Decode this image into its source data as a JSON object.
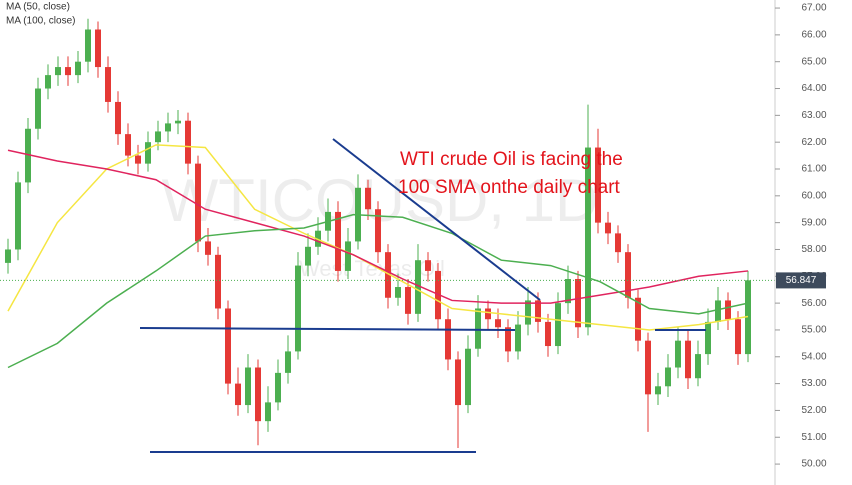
{
  "chart_data": {
    "type": "candlestick",
    "legend": [
      "MA (50, close)",
      "MA (100, close)"
    ],
    "annotation": [
      "WTI crude Oil is facing the",
      "100 SMA onthe daily chart"
    ],
    "watermark": [
      "WTICOUSD, 1D",
      "West Texas Oil"
    ],
    "up_color": "#4caf50",
    "down_color": "#e53935",
    "open": [
      57.5,
      58.0,
      60.5,
      62.5,
      64.0,
      64.5,
      64.8,
      64.5,
      65.0,
      66.2,
      64.8,
      63.5,
      62.3,
      61.5,
      61.2,
      62.0,
      62.4,
      62.7,
      62.8,
      61.2,
      58.3,
      57.8,
      55.8,
      53.0,
      52.2,
      53.6,
      51.6,
      52.3,
      53.4,
      54.2,
      57.4,
      58.1,
      58.7,
      59.4,
      57.2,
      58.3,
      60.3,
      59.5,
      57.9,
      56.2,
      56.6,
      55.6,
      57.6,
      57.2,
      55.4,
      53.9,
      52.2,
      54.3,
      55.8,
      55.4,
      55.1,
      54.2,
      55.2,
      56.1,
      55.3,
      54.4,
      56.0,
      56.9,
      55.1,
      61.8,
      59.0,
      58.6,
      57.9,
      56.2,
      54.6,
      52.6,
      52.9,
      53.6,
      54.6,
      53.2,
      54.1,
      55.3,
      56.1,
      55.4,
      54.1
    ],
    "high": [
      58.4,
      60.9,
      62.9,
      64.4,
      64.9,
      65.2,
      65.2,
      65.4,
      66.6,
      66.5,
      65.2,
      63.9,
      62.7,
      61.9,
      62.4,
      62.8,
      63.1,
      63.2,
      63.1,
      61.5,
      58.8,
      58.1,
      56.1,
      53.6,
      54.1,
      53.9,
      52.9,
      53.9,
      54.8,
      57.9,
      58.6,
      59.2,
      59.9,
      59.8,
      58.8,
      60.8,
      60.6,
      59.8,
      58.2,
      57.1,
      56.9,
      58.2,
      57.9,
      57.5,
      55.8,
      54.2,
      54.8,
      56.3,
      56.1,
      55.8,
      55.4,
      55.7,
      56.6,
      56.4,
      55.6,
      56.4,
      57.4,
      57.2,
      63.4,
      62.5,
      59.4,
      58.9,
      58.2,
      56.5,
      54.9,
      53.4,
      54.1,
      55.1,
      55.0,
      54.6,
      55.8,
      56.6,
      56.4,
      55.7,
      57.2
    ],
    "low": [
      57.1,
      57.6,
      60.1,
      62.1,
      63.6,
      64.1,
      64.1,
      64.2,
      64.6,
      64.4,
      63.1,
      61.9,
      61.1,
      60.8,
      60.9,
      61.7,
      62.0,
      62.3,
      60.8,
      57.9,
      57.4,
      55.4,
      52.6,
      51.8,
      51.9,
      50.7,
      51.2,
      52.0,
      53.0,
      53.9,
      57.0,
      57.8,
      58.3,
      56.8,
      56.9,
      58.0,
      59.1,
      57.5,
      55.8,
      55.9,
      55.2,
      55.3,
      56.8,
      55.0,
      53.5,
      50.6,
      51.9,
      54.0,
      55.0,
      54.7,
      53.8,
      53.9,
      54.8,
      54.9,
      54.0,
      54.1,
      55.6,
      54.7,
      54.8,
      58.6,
      58.2,
      57.5,
      55.8,
      54.2,
      51.2,
      52.2,
      52.5,
      53.2,
      52.8,
      52.9,
      53.7,
      55.0,
      55.0,
      53.7,
      53.8
    ],
    "close": [
      58.0,
      60.5,
      62.5,
      64.0,
      64.5,
      64.8,
      64.5,
      65.0,
      66.2,
      64.8,
      63.5,
      62.3,
      61.5,
      61.2,
      62.0,
      62.4,
      62.7,
      62.8,
      61.2,
      58.3,
      57.8,
      55.8,
      53.0,
      52.2,
      53.6,
      51.6,
      52.3,
      53.4,
      54.2,
      57.4,
      58.1,
      58.7,
      59.4,
      57.2,
      58.3,
      60.3,
      59.5,
      57.9,
      56.2,
      56.6,
      55.6,
      57.6,
      57.2,
      55.4,
      53.9,
      52.2,
      54.3,
      55.8,
      55.4,
      55.1,
      54.2,
      55.2,
      56.1,
      55.3,
      54.4,
      56.0,
      56.9,
      55.1,
      61.8,
      59.0,
      58.6,
      57.9,
      56.2,
      54.6,
      52.6,
      52.9,
      53.6,
      54.6,
      53.2,
      54.1,
      55.3,
      56.1,
      55.4,
      54.1,
      56.85
    ],
    "series": [
      {
        "name": "MA (50, close)",
        "color": "#f5e642",
        "values": [
          55.7,
          59.0,
          61.0,
          61.9,
          61.8,
          59.5,
          58.6,
          57.8,
          56.8,
          55.8,
          55.6,
          55.4,
          55.2,
          55.0,
          55.2,
          55.5
        ]
      },
      {
        "name": "MA (100, close)",
        "color": "#e0245e",
        "values": [
          61.7,
          61.3,
          61.0,
          60.6,
          59.5,
          59.0,
          58.5,
          57.8,
          56.9,
          56.1,
          56.0,
          56.0,
          56.3,
          56.6,
          57.0,
          57.2
        ]
      },
      {
        "color": "#4caf50",
        "values": [
          53.6,
          54.5,
          56.0,
          57.2,
          58.5,
          58.7,
          58.8,
          59.3,
          59.2,
          58.6,
          57.6,
          57.4,
          56.8,
          55.8,
          55.6,
          56.0
        ]
      }
    ],
    "last_price": 56.847,
    "ylim": [
      49.22,
      67.3
    ],
    "yticks": [
      {
        "value": 50,
        "label": "50.00"
      },
      {
        "value": 51,
        "label": "51.00"
      },
      {
        "value": 52,
        "label": "52.00"
      },
      {
        "value": 53,
        "label": "53.00"
      },
      {
        "value": 54,
        "label": "54.00"
      },
      {
        "value": 55,
        "label": "55.00"
      },
      {
        "value": 56,
        "label": "56.00"
      },
      {
        "value": 57,
        "label": "57.00"
      },
      {
        "value": 58,
        "label": "58.00"
      },
      {
        "value": 59,
        "label": "59.00"
      },
      {
        "value": 60,
        "label": "60.00"
      },
      {
        "value": 61,
        "label": "61.00"
      },
      {
        "value": 62,
        "label": "62.00"
      },
      {
        "value": 63,
        "label": "63.00"
      },
      {
        "value": 64,
        "label": "64.00"
      },
      {
        "value": 65,
        "label": "65.00"
      },
      {
        "value": 66,
        "label": "66.00"
      },
      {
        "value": 67,
        "label": "67.00"
      }
    ],
    "grid": false
  }
}
